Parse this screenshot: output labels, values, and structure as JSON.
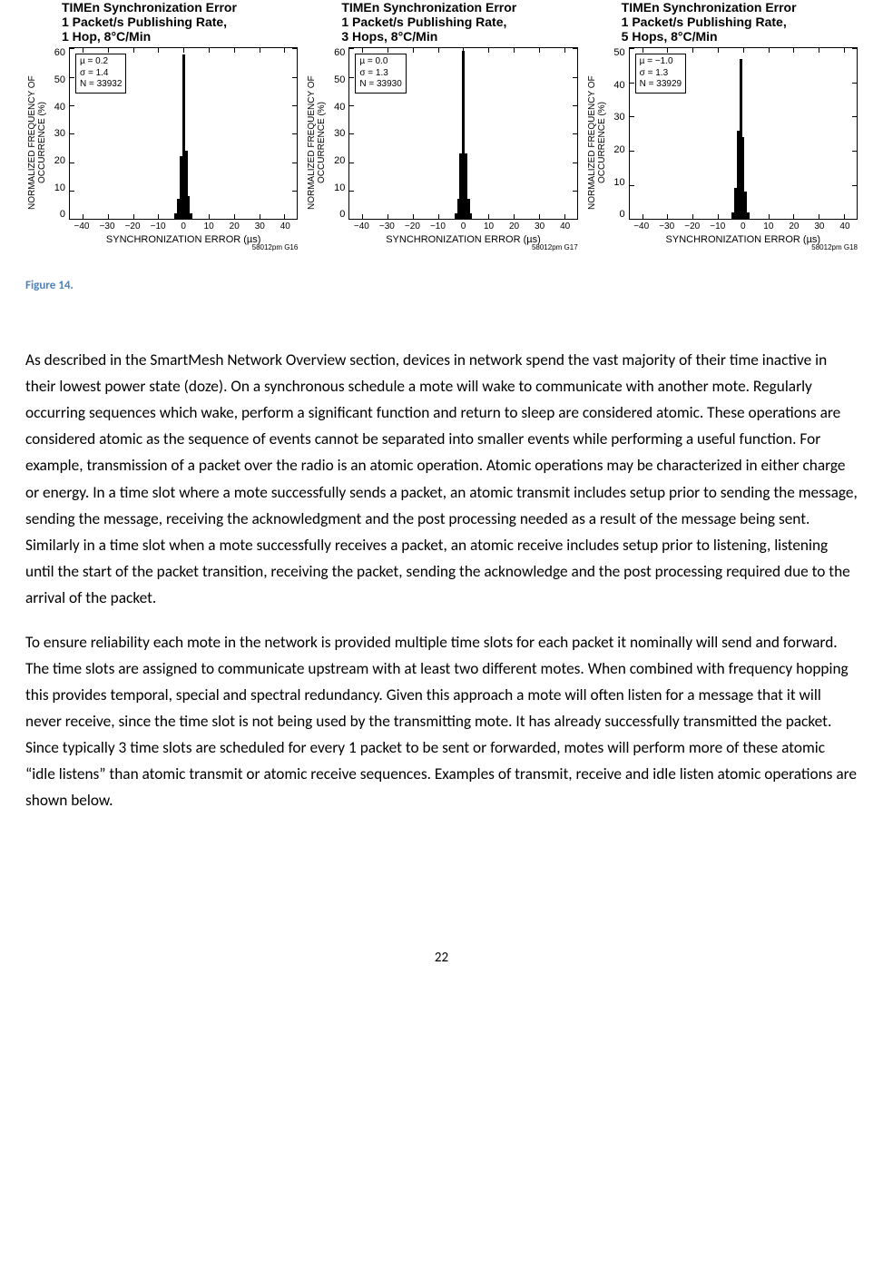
{
  "charts": [
    {
      "title": "TIMEn Synchronization Error\n1 Packet/s Publishing Rate,\n1 Hop, 8°C/Min",
      "ylabel": "NORMALIZED FREQUENCY OF OCCURRENCE (%)",
      "xlabel": "SYNCHRONIZATION ERROR (µs)",
      "yticks": [
        "60",
        "50",
        "40",
        "30",
        "20",
        "10",
        "0"
      ],
      "xticks": [
        "−40",
        "−30",
        "−20",
        "−10",
        "0",
        "10",
        "20",
        "30",
        "40"
      ],
      "xlim": [
        -45,
        45
      ],
      "ylim": [
        0,
        60
      ],
      "stats": "µ = 0.2\nσ = 1.4\nN = 33932",
      "bars": [
        {
          "x": -3,
          "h": 2
        },
        {
          "x": -2,
          "h": 7
        },
        {
          "x": -1,
          "h": 22
        },
        {
          "x": 0,
          "h": 58
        },
        {
          "x": 1,
          "h": 24
        },
        {
          "x": 2,
          "h": 8
        },
        {
          "x": 3,
          "h": 2
        }
      ],
      "bar_color": "#000000",
      "id_text": "58012pm G16"
    },
    {
      "title": "TIMEn Synchronization Error\n1 Packet/s Publishing Rate,\n3 Hops, 8°C/Min",
      "ylabel": "NORMALIZED FREQUENCY OF OCCURRENCE (%)",
      "xlabel": "SYNCHRONIZATION ERROR (µs)",
      "yticks": [
        "60",
        "50",
        "40",
        "30",
        "20",
        "10",
        "0"
      ],
      "xticks": [
        "−40",
        "−30",
        "−20",
        "−10",
        "0",
        "10",
        "20",
        "30",
        "40"
      ],
      "xlim": [
        -45,
        45
      ],
      "ylim": [
        0,
        60
      ],
      "stats": "µ = 0.0\nσ = 1.3\nN = 33930",
      "bars": [
        {
          "x": -3,
          "h": 2
        },
        {
          "x": -2,
          "h": 7
        },
        {
          "x": -1,
          "h": 23
        },
        {
          "x": 0,
          "h": 59
        },
        {
          "x": 1,
          "h": 23
        },
        {
          "x": 2,
          "h": 7
        },
        {
          "x": 3,
          "h": 2
        }
      ],
      "bar_color": "#000000",
      "id_text": "58012pm G17"
    },
    {
      "title": "TIMEn Synchronization Error\n1 Packet/s Publishing Rate,\n5 Hops, 8°C/Min",
      "ylabel": "NORMALIZED FREQUENCY OF OCCURRENCE (%)",
      "xlabel": "SYNCHRONIZATION ERROR (µs)",
      "yticks": [
        "50",
        "40",
        "30",
        "20",
        "10",
        "0"
      ],
      "xticks": [
        "−40",
        "−30",
        "−20",
        "−10",
        "0",
        "10",
        "20",
        "30",
        "40"
      ],
      "xlim": [
        -45,
        45
      ],
      "ylim": [
        0,
        50
      ],
      "stats": "µ = −1.0\nσ = 1.3\nN = 33929",
      "bars": [
        {
          "x": -4,
          "h": 2
        },
        {
          "x": -3,
          "h": 9
        },
        {
          "x": -2,
          "h": 26
        },
        {
          "x": -1,
          "h": 47
        },
        {
          "x": 0,
          "h": 24
        },
        {
          "x": 1,
          "h": 8
        },
        {
          "x": 2,
          "h": 2
        }
      ],
      "bar_color": "#000000",
      "id_text": "58012pm G18"
    }
  ],
  "figure_caption": "Figure 14.",
  "caption_color": "#4f81bd",
  "paragraphs": [
    "As described in the SmartMesh Network Overview section, devices in network spend the vast majority of their time inactive in their lowest power state (doze). On a synchronous schedule a mote will wake to communicate with another mote. Regularly occurring sequences which wake, perform a significant function and return to sleep are considered atomic. These operations are considered atomic as the sequence of events cannot be separated into smaller events while performing a useful function. For example, transmission of a packet over the radio is an atomic operation. Atomic operations may be characterized in either charge or energy. In a time slot where a mote successfully sends a packet, an atomic transmit includes setup prior to sending the message, sending the message, receiving the acknowledgment and the post processing needed as a result of the message being sent. Similarly in a time slot when a mote successfully receives a packet, an atomic receive includes setup prior to listening, listening until the start of the packet transition, receiving the packet, sending the acknowledge and the post processing required due to the arrival of the packet.",
    "To ensure reliability each mote in the network is provided multiple time slots for each packet it nominally will send and forward. The time slots are assigned to communicate upstream with at least two different motes. When combined with frequency hopping this provides temporal, special and spectral redundancy. Given this approach a mote will often listen for a message that it will never receive, since the time slot is not being used by the transmitting mote. It has already successfully transmitted the packet. Since typically 3 time slots are scheduled for every 1 packet to be sent or forwarded, motes will perform more of these atomic “idle listens” than atomic transmit or atomic receive sequences. Examples of transmit, receive and idle listen atomic operations are shown below."
  ],
  "page_number": "22",
  "text_color": "#000000",
  "background_color": "#ffffff"
}
